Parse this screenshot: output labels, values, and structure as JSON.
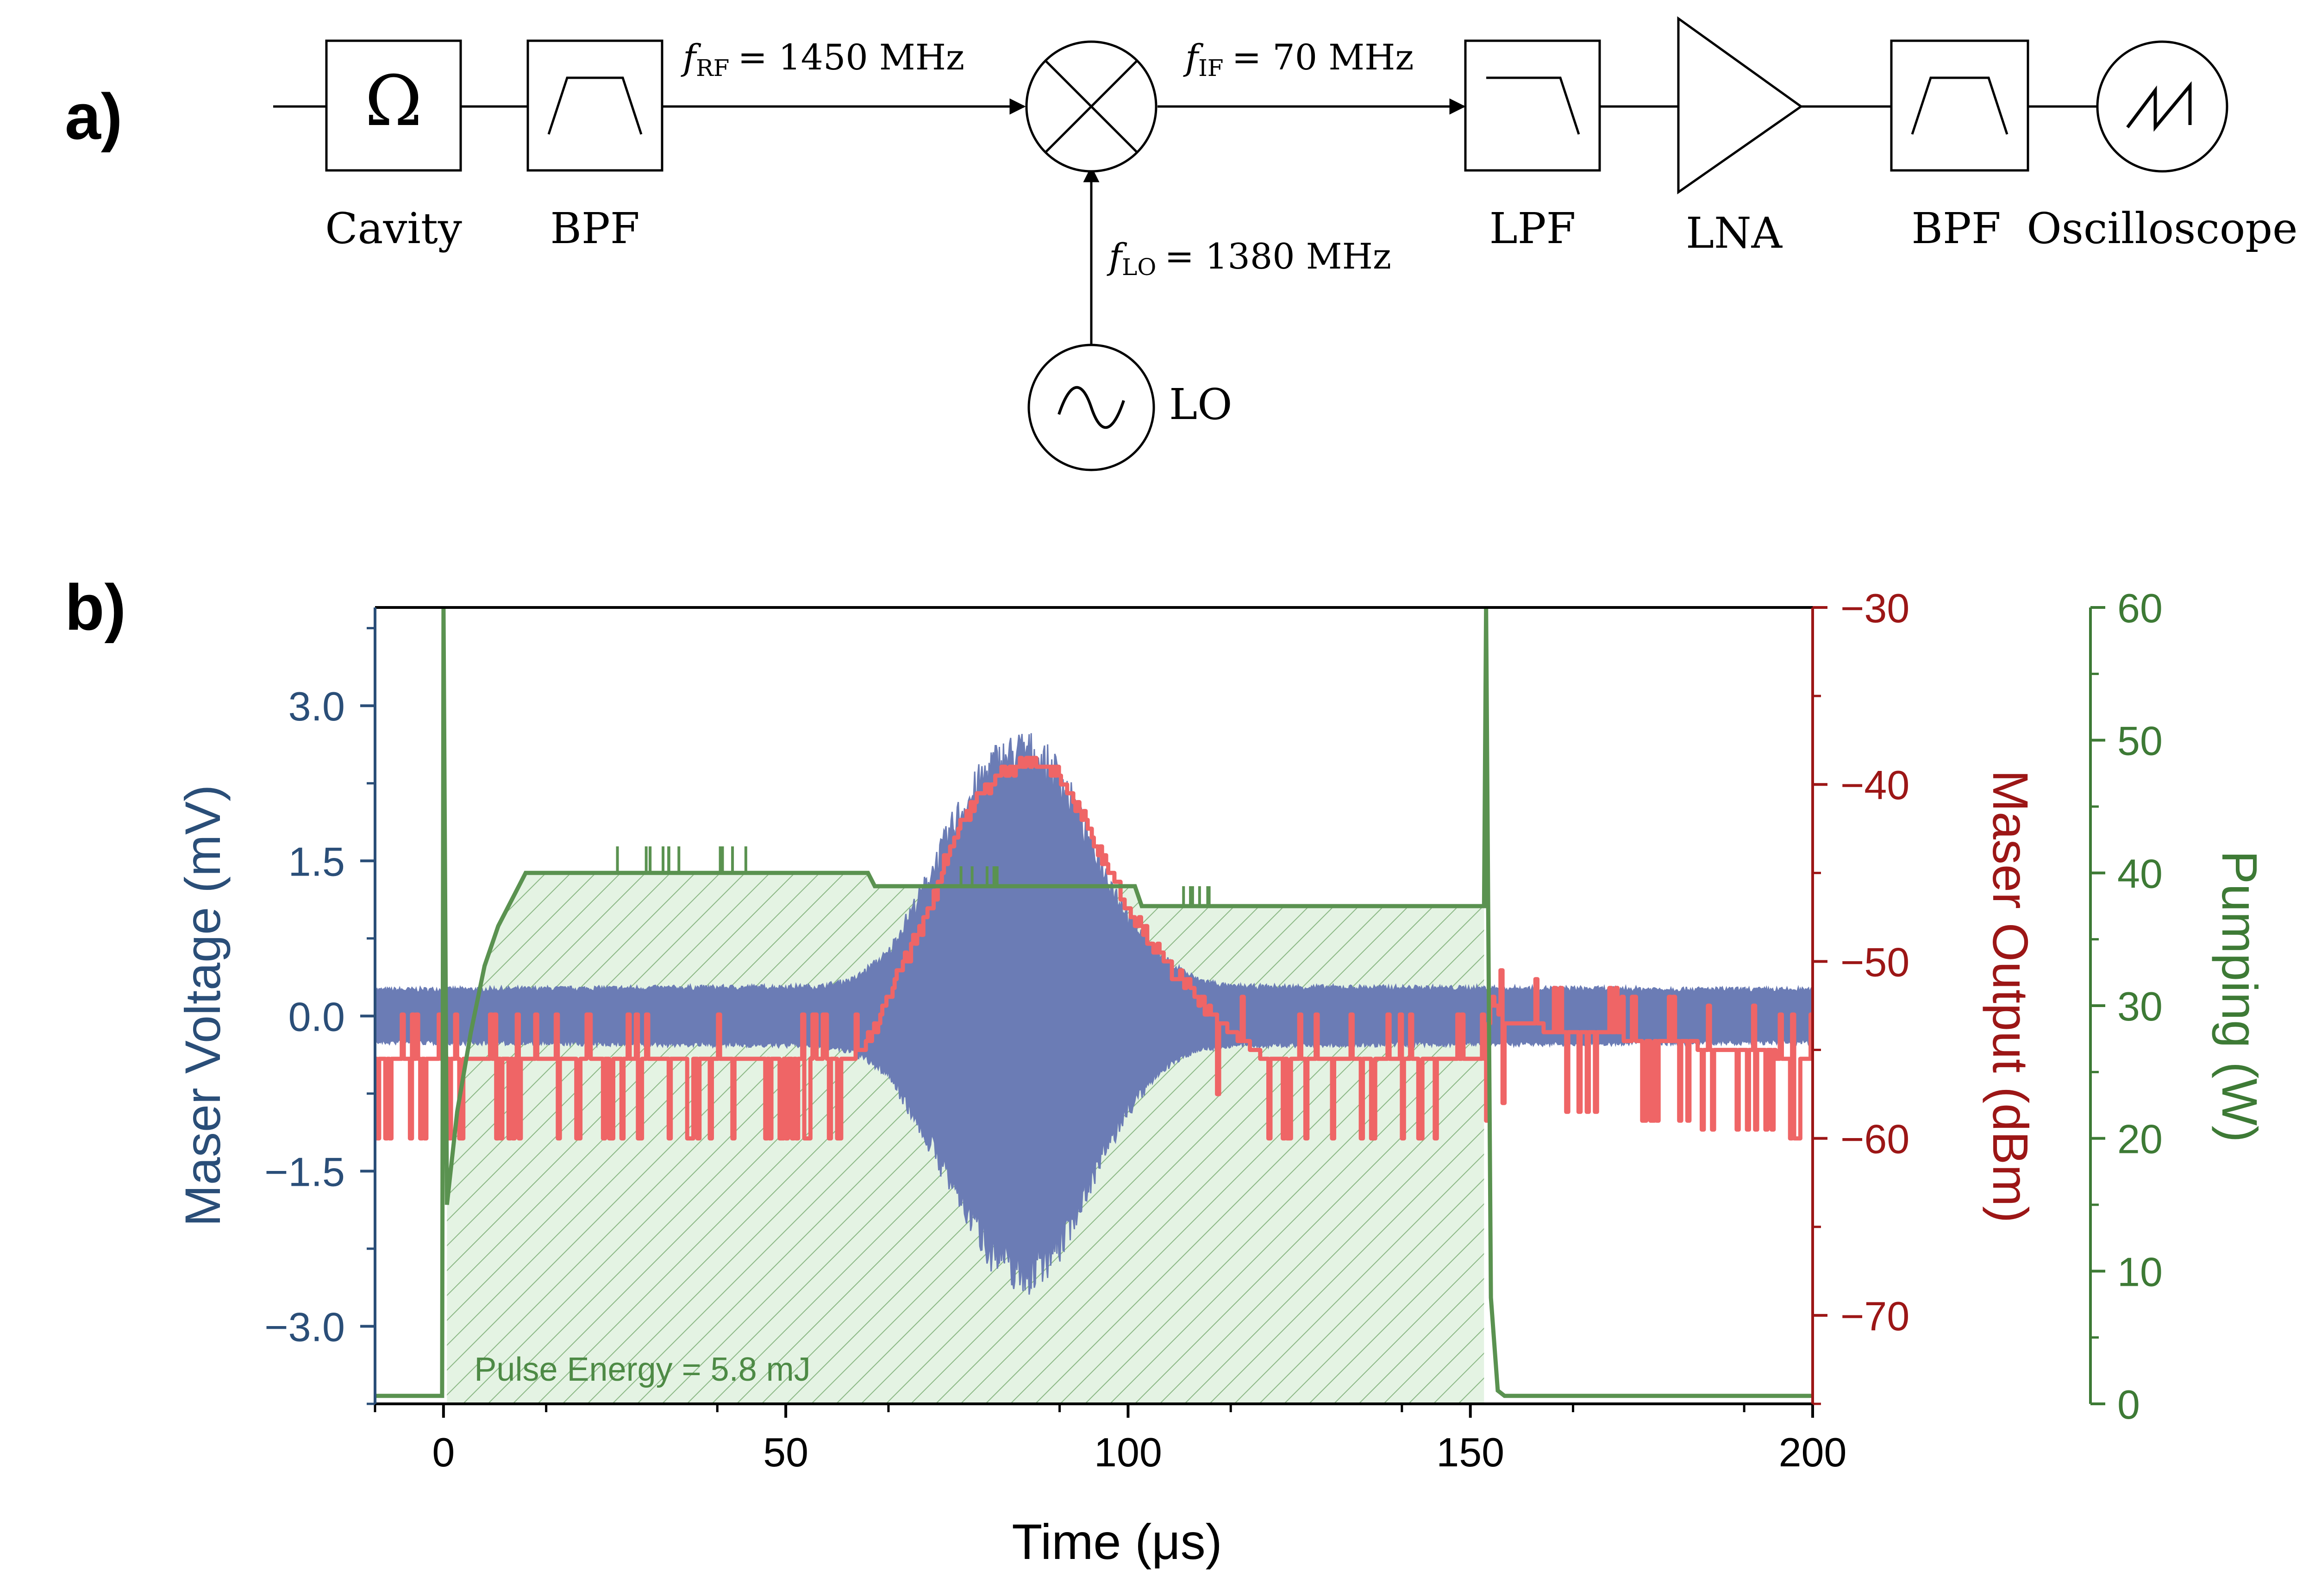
{
  "panel_a": {
    "label": "a)",
    "blocks": {
      "cavity": {
        "symbol": "Ω",
        "label": "Cavity"
      },
      "bpf1": {
        "label": "BPF"
      },
      "mixer": {
        "label": ""
      },
      "lpf": {
        "label": "LPF"
      },
      "lna": {
        "label": "LNA"
      },
      "bpf2": {
        "label": "BPF"
      },
      "oscilloscope": {
        "label": "Oscilloscope"
      },
      "lo": {
        "label": "LO"
      }
    },
    "signals": {
      "f_rf": {
        "symbol": "f",
        "sub": "RF",
        "value": "= 1450 MHz"
      },
      "f_if": {
        "symbol": "f",
        "sub": "IF",
        "value": "= 70 MHz"
      },
      "f_lo": {
        "symbol": "f",
        "sub": "LO",
        "value": "= 1380 MHz"
      }
    }
  },
  "panel_b": {
    "label": "b)",
    "annotation": "Pulse Energy = 5.8 mJ"
  },
  "chart_data": {
    "type": "line",
    "x": {
      "label": "Time (μs)",
      "range": [
        -10,
        200
      ],
      "ticks": [
        0,
        50,
        100,
        150,
        200
      ],
      "tick_labels": [
        "0",
        "50",
        "100",
        "150",
        "200"
      ]
    },
    "y_left": {
      "label": "Maser Voltage (mV)",
      "range": [
        -3.75,
        3.95
      ],
      "ticks": [
        3.0,
        1.5,
        0.0,
        -1.5,
        -3.0
      ],
      "tick_labels": [
        "3.0",
        "1.5",
        "0.0",
        "−1.5",
        "−3.0"
      ],
      "color": "#2a4e78"
    },
    "y_right1": {
      "label": "Maser Output (dBm)",
      "range": [
        -75,
        -30
      ],
      "ticks": [
        -30,
        -40,
        -50,
        -60,
        -70
      ],
      "tick_labels": [
        "−30",
        "−40",
        "−50",
        "−60",
        "−70"
      ],
      "color": "#9c1616"
    },
    "y_right2": {
      "label": "Pumping (W)",
      "range": [
        0,
        60
      ],
      "ticks": [
        60,
        50,
        40,
        30,
        20,
        10,
        0
      ],
      "tick_labels": [
        "60",
        "50",
        "40",
        "30",
        "20",
        "10",
        "0"
      ],
      "color": "#3d7a35"
    },
    "series": [
      {
        "name": "Maser Voltage",
        "axis": "y_left",
        "style": "envelope",
        "color": "#6b7cb5",
        "points": [
          [
            -10,
            0.25,
            -0.25
          ],
          [
            55,
            0.28,
            -0.28
          ],
          [
            60,
            0.35,
            -0.35
          ],
          [
            65,
            0.6,
            -0.55
          ],
          [
            70,
            1.2,
            -1.1
          ],
          [
            75,
            1.9,
            -1.7
          ],
          [
            80,
            2.4,
            -2.25
          ],
          [
            85,
            2.55,
            -2.5
          ],
          [
            90,
            2.3,
            -2.2
          ],
          [
            95,
            1.6,
            -1.5
          ],
          [
            100,
            0.95,
            -0.9
          ],
          [
            105,
            0.55,
            -0.5
          ],
          [
            110,
            0.35,
            -0.32
          ],
          [
            115,
            0.28,
            -0.28
          ],
          [
            200,
            0.25,
            -0.25
          ]
        ]
      },
      {
        "name": "Maser Output",
        "axis": "y_right1",
        "style": "line",
        "color": "#ef6566",
        "points": [
          [
            -10,
            -55.5
          ],
          [
            60,
            -55.5
          ],
          [
            63,
            -54
          ],
          [
            66,
            -51
          ],
          [
            70,
            -48
          ],
          [
            75,
            -42.5
          ],
          [
            80,
            -39.8
          ],
          [
            85,
            -38.6
          ],
          [
            90,
            -39.6
          ],
          [
            95,
            -43
          ],
          [
            100,
            -47
          ],
          [
            105,
            -50
          ],
          [
            110,
            -52
          ],
          [
            115,
            -54
          ],
          [
            120,
            -55.5
          ],
          [
            152,
            -55.5
          ],
          [
            153,
            -52
          ],
          [
            155,
            -53.5
          ],
          [
            200,
            -55.5
          ]
        ]
      },
      {
        "name": "Pumping",
        "axis": "y_right2",
        "style": "filled",
        "fill_label": "Pulse Energy = 5.8 mJ",
        "color": "#5a9250",
        "points": [
          [
            -10,
            0.6
          ],
          [
            -0.2,
            0.6
          ],
          [
            0,
            60
          ],
          [
            0.5,
            15
          ],
          [
            2,
            22
          ],
          [
            4,
            28
          ],
          [
            6,
            33
          ],
          [
            8,
            36
          ],
          [
            10,
            38
          ],
          [
            12,
            40
          ],
          [
            62,
            40
          ],
          [
            63,
            39
          ],
          [
            101,
            39
          ],
          [
            102,
            37.5
          ],
          [
            152,
            37.5
          ],
          [
            152.3,
            60
          ],
          [
            153,
            8
          ],
          [
            154,
            1
          ],
          [
            155,
            0.6
          ],
          [
            200,
            0.6
          ]
        ]
      }
    ]
  }
}
